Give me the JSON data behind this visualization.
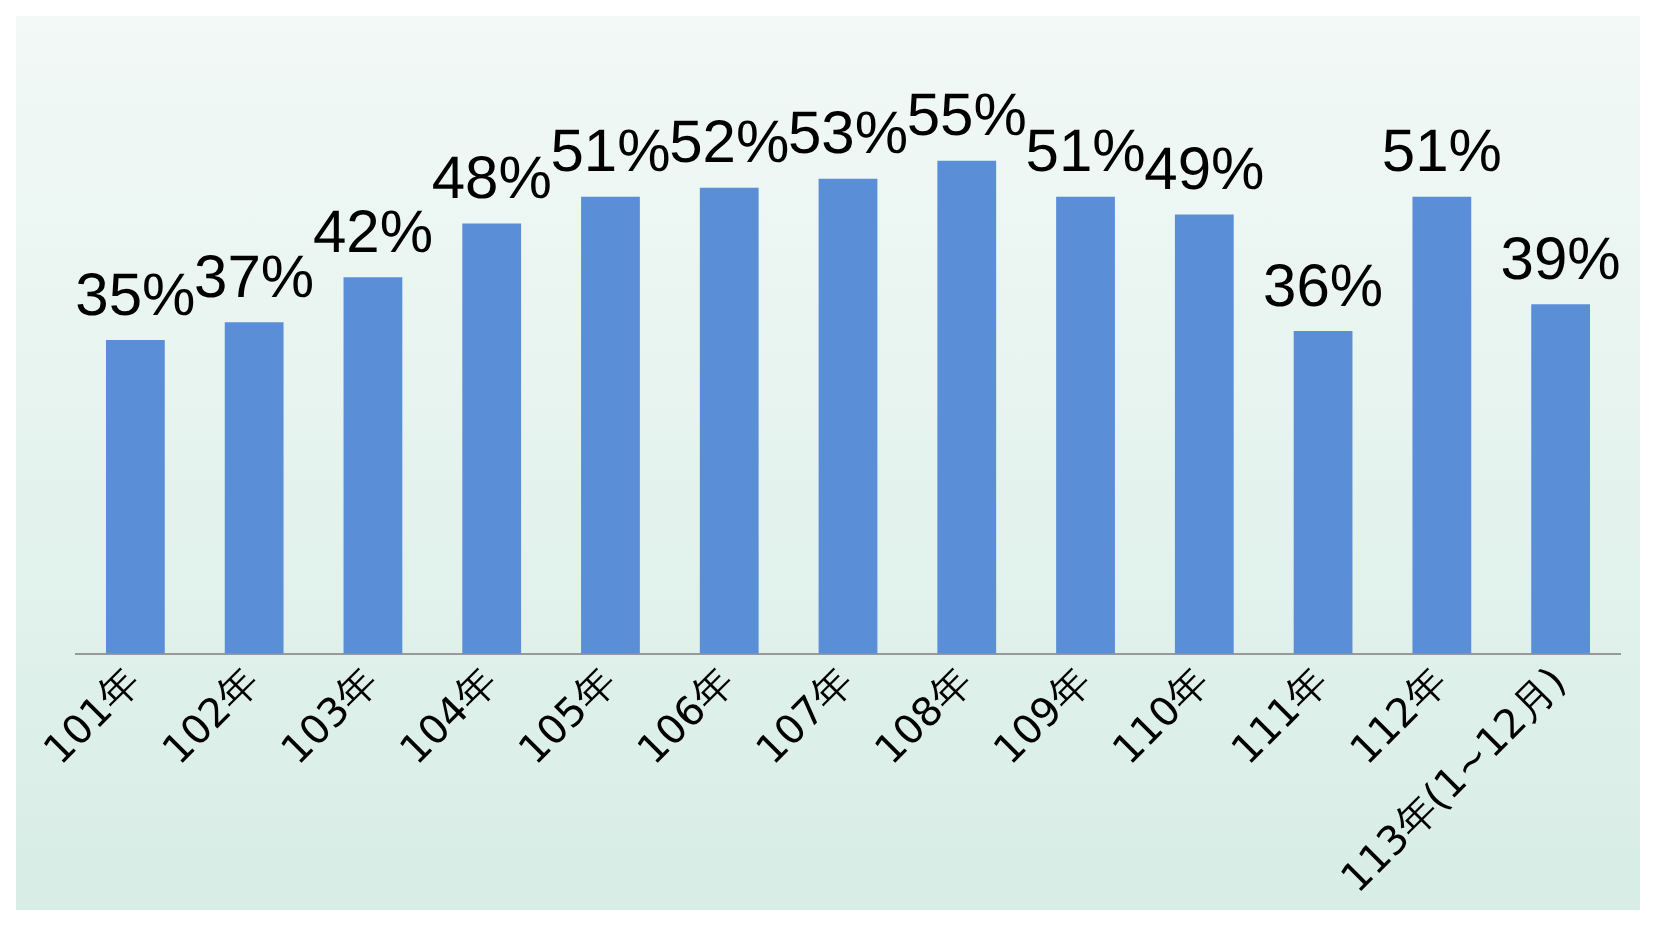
{
  "chart_data": {
    "type": "bar",
    "categories": [
      "101年",
      "102年",
      "103年",
      "104年",
      "105年",
      "106年",
      "107年",
      "108年",
      "109年",
      "110年",
      "111年",
      "112年",
      "113年(1~12月)"
    ],
    "values": [
      35,
      37,
      42,
      48,
      51,
      52,
      53,
      55,
      51,
      49,
      36,
      51,
      39
    ],
    "value_labels": [
      "35%",
      "37%",
      "42%",
      "48%",
      "51%",
      "52%",
      "53%",
      "55%",
      "51%",
      "49%",
      "36%",
      "51%",
      "39%"
    ],
    "color": "#5a8fd8",
    "grid": false,
    "legend": false
  }
}
